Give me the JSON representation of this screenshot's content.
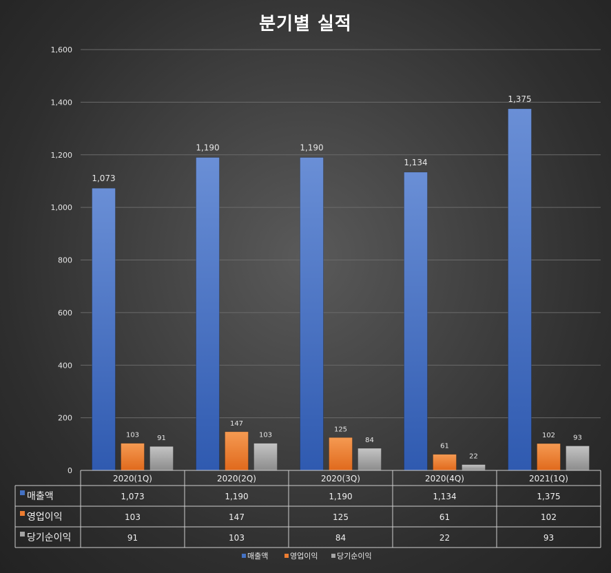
{
  "chart_data": {
    "type": "bar",
    "title": "분기별 실적",
    "categories": [
      "2020(1Q)",
      "2020(2Q)",
      "2020(3Q)",
      "2020(4Q)",
      "2021(1Q)"
    ],
    "series": [
      {
        "name": "매출액",
        "values": [
          1073,
          1190,
          1190,
          1134,
          1375
        ],
        "labels": [
          "1,073",
          "1,190",
          "1,190",
          "1,134",
          "1,375"
        ],
        "color": "#4472c4"
      },
      {
        "name": "영업이익",
        "values": [
          103,
          147,
          125,
          61,
          102
        ],
        "labels": [
          "103",
          "147",
          "125",
          "61",
          "102"
        ],
        "color": "#ed7d31"
      },
      {
        "name": "당기순이익",
        "values": [
          91,
          103,
          84,
          22,
          93
        ],
        "labels": [
          "91",
          "103",
          "84",
          "22",
          "93"
        ],
        "color": "#a5a5a5"
      }
    ],
    "ylim": [
      0,
      1600
    ],
    "yticks": [
      "0",
      "200",
      "400",
      "600",
      "800",
      "1,000",
      "1,200",
      "1,400",
      "1,600"
    ],
    "grid": true,
    "legend": "bottom",
    "data_table": true
  }
}
